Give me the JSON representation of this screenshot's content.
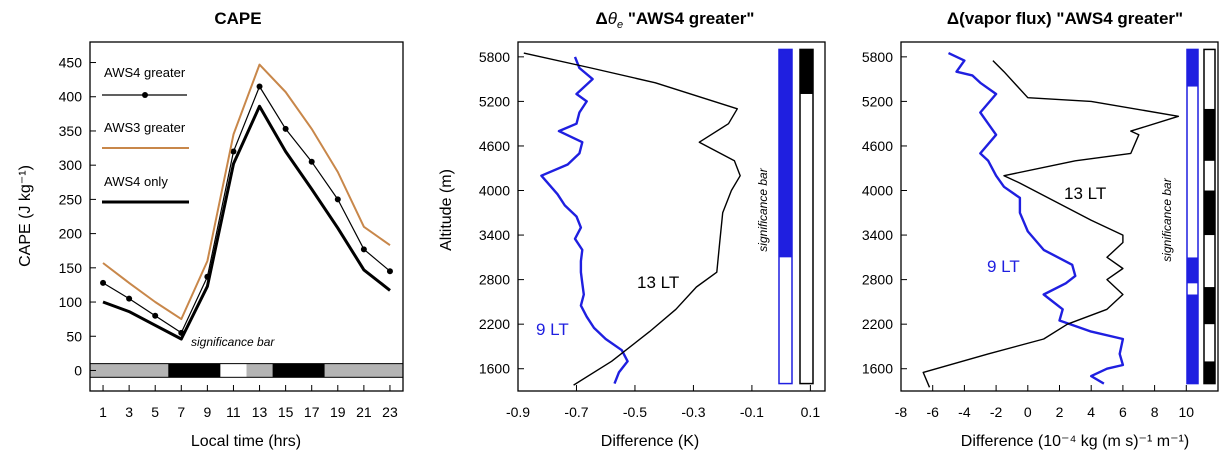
{
  "chart_data": [
    {
      "type": "line",
      "title": "CAPE",
      "xlabel": "Local time (hrs)",
      "ylabel": "CAPE (J kg⁻¹)",
      "xlim": [
        0,
        24
      ],
      "ylim": [
        -30,
        480
      ],
      "xticks": [
        "1",
        "3",
        "5",
        "7",
        "9",
        "11",
        "13",
        "15",
        "17",
        "19",
        "21",
        "23"
      ],
      "yticks": [
        "0",
        "50",
        "100",
        "150",
        "200",
        "250",
        "300",
        "350",
        "400",
        "450"
      ],
      "x": [
        1,
        3,
        5,
        7,
        9,
        11,
        13,
        15,
        17,
        19,
        21,
        23
      ],
      "series": [
        {
          "name": "AWS4 greater",
          "color": "#000000",
          "width": 1.2,
          "markers": true,
          "values": [
            128,
            105,
            80,
            55,
            137,
            320,
            415,
            353,
            305,
            250,
            177,
            145
          ]
        },
        {
          "name": "AWS3 greater",
          "color": "#c8874a",
          "width": 2,
          "markers": false,
          "values": [
            157,
            128,
            100,
            75,
            160,
            345,
            447,
            407,
            353,
            290,
            210,
            183
          ]
        },
        {
          "name": "AWS4 only",
          "color": "#000000",
          "width": 3,
          "markers": false,
          "values": [
            100,
            86,
            66,
            46,
            123,
            302,
            386,
            320,
            265,
            208,
            147,
            117
          ]
        }
      ],
      "legend_position": "top-left",
      "significance_label": "significance bar",
      "significance_bar": [
        {
          "from": 0,
          "to": 6,
          "state": "not-significant"
        },
        {
          "from": 6,
          "to": 10,
          "state": "significant"
        },
        {
          "from": 10,
          "to": 12,
          "state": "other"
        },
        {
          "from": 12,
          "to": 14,
          "state": "not-significant"
        },
        {
          "from": 14,
          "to": 18,
          "state": "significant"
        },
        {
          "from": 18,
          "to": 24,
          "state": "not-significant"
        }
      ]
    },
    {
      "type": "line",
      "title": "Δθe \"AWS4 greater\"",
      "title_parts": {
        "delta": "Δ",
        "symbol": "θ",
        "subscript": "e",
        "rest": " \"AWS4 greater\""
      },
      "xlabel": "Difference (K)",
      "ylabel": "Altitude (m)",
      "xlim": [
        -0.9,
        0.15
      ],
      "ylim": [
        1300,
        6000
      ],
      "xticks": [
        "-0.9",
        "-0.7",
        "-0.5",
        "-0.3",
        "-0.1",
        "0.1"
      ],
      "yticks": [
        "1600",
        "2200",
        "2800",
        "3400",
        "4000",
        "4600",
        "5200",
        "5800"
      ],
      "series": [
        {
          "name": "9 LT",
          "color": "#1f1fe0",
          "points": [
            [
              -0.57,
              1400
            ],
            [
              -0.555,
              1550
            ],
            [
              -0.525,
              1700
            ],
            [
              -0.545,
              1850
            ],
            [
              -0.6,
              2000
            ],
            [
              -0.64,
              2150
            ],
            [
              -0.665,
              2300
            ],
            [
              -0.685,
              2450
            ],
            [
              -0.675,
              2600
            ],
            [
              -0.68,
              2750
            ],
            [
              -0.685,
              2900
            ],
            [
              -0.685,
              3050
            ],
            [
              -0.68,
              3200
            ],
            [
              -0.705,
              3350
            ],
            [
              -0.685,
              3500
            ],
            [
              -0.7,
              3650
            ],
            [
              -0.74,
              3800
            ],
            [
              -0.765,
              3950
            ],
            [
              -0.82,
              4200
            ],
            [
              -0.73,
              4350
            ],
            [
              -0.69,
              4500
            ],
            [
              -0.68,
              4650
            ],
            [
              -0.76,
              4800
            ],
            [
              -0.7,
              4900
            ],
            [
              -0.69,
              5050
            ],
            [
              -0.665,
              5200
            ],
            [
              -0.7,
              5300
            ],
            [
              -0.645,
              5500
            ],
            [
              -0.69,
              5650
            ],
            [
              -0.705,
              5800
            ]
          ]
        },
        {
          "name": "13 LT",
          "color": "#000000",
          "points": [
            [
              -0.71,
              1380
            ],
            [
              -0.58,
              1700
            ],
            [
              -0.45,
              2100
            ],
            [
              -0.36,
              2400
            ],
            [
              -0.29,
              2700
            ],
            [
              -0.22,
              2900
            ],
            [
              -0.21,
              3300
            ],
            [
              -0.2,
              3700
            ],
            [
              -0.17,
              4000
            ],
            [
              -0.14,
              4200
            ],
            [
              -0.16,
              4400
            ],
            [
              -0.28,
              4650
            ],
            [
              -0.18,
              4900
            ],
            [
              -0.15,
              5100
            ],
            [
              -0.43,
              5450
            ],
            [
              -0.65,
              5650
            ],
            [
              -0.88,
              5850
            ]
          ]
        }
      ],
      "series_labels": [
        "9 LT",
        "13 LT"
      ],
      "significance_label": "significance bar",
      "significance_bars": [
        {
          "color": "#1f1fe0",
          "segments": [
            {
              "from": 1400,
              "to": 3100,
              "state": "not-significant"
            },
            {
              "from": 3100,
              "to": 5900,
              "state": "significant"
            }
          ]
        },
        {
          "color": "#000000",
          "segments": [
            {
              "from": 1400,
              "to": 5300,
              "state": "not-significant"
            },
            {
              "from": 5300,
              "to": 5900,
              "state": "significant"
            }
          ]
        }
      ]
    },
    {
      "type": "line",
      "title": "Δ(vapor flux) \"AWS4 greater\"",
      "xlabel": "Difference (10⁻⁴ kg (m s)⁻¹ m⁻¹)",
      "ylabel": "",
      "xlim": [
        -8,
        12
      ],
      "ylim": [
        1300,
        6000
      ],
      "xticks": [
        "-8",
        "-6",
        "-4",
        "-2",
        "0",
        "2",
        "4",
        "6",
        "8",
        "10"
      ],
      "yticks": [
        "1600",
        "2200",
        "2800",
        "3400",
        "4000",
        "4600",
        "5200",
        "5800"
      ],
      "series": [
        {
          "name": "9 LT",
          "color": "#1f1fe0",
          "points": [
            [
              4.8,
              1400
            ],
            [
              4.0,
              1500
            ],
            [
              5.0,
              1600
            ],
            [
              6.0,
              1650
            ],
            [
              5.8,
              1800
            ],
            [
              6.0,
              2000
            ],
            [
              4.0,
              2100
            ],
            [
              2.0,
              2250
            ],
            [
              2.2,
              2400
            ],
            [
              1.0,
              2600
            ],
            [
              2.4,
              2750
            ],
            [
              3.0,
              2850
            ],
            [
              2.8,
              3000
            ],
            [
              1.0,
              3200
            ],
            [
              0.0,
              3450
            ],
            [
              -0.5,
              3700
            ],
            [
              -0.5,
              3900
            ],
            [
              -1.5,
              4050
            ],
            [
              -2.0,
              4200
            ],
            [
              -2.5,
              4400
            ],
            [
              -3.0,
              4500
            ],
            [
              -2.0,
              4750
            ],
            [
              -2.5,
              4900
            ],
            [
              -3.0,
              5050
            ],
            [
              -2.0,
              5300
            ],
            [
              -3.0,
              5450
            ],
            [
              -3.5,
              5550
            ],
            [
              -4.5,
              5600
            ],
            [
              -4.0,
              5750
            ],
            [
              -5.0,
              5850
            ]
          ]
        },
        {
          "name": "13 LT",
          "color": "#000000",
          "points": [
            [
              -6.2,
              1350
            ],
            [
              -6.6,
              1550
            ],
            [
              -2.5,
              1800
            ],
            [
              1.0,
              2000
            ],
            [
              2.5,
              2200
            ],
            [
              5.0,
              2400
            ],
            [
              6.0,
              2600
            ],
            [
              5.0,
              2800
            ],
            [
              6.0,
              2950
            ],
            [
              5.0,
              3100
            ],
            [
              6.0,
              3300
            ],
            [
              6.0,
              3400
            ],
            [
              4.0,
              3600
            ],
            [
              -0.5,
              4100
            ],
            [
              -1.5,
              4200
            ],
            [
              3.0,
              4400
            ],
            [
              6.5,
              4500
            ],
            [
              7.0,
              4750
            ],
            [
              6.5,
              4800
            ],
            [
              9.5,
              5000
            ],
            [
              4.0,
              5200
            ],
            [
              0.0,
              5250
            ],
            [
              -1.5,
              5600
            ],
            [
              -2.2,
              5750
            ]
          ]
        }
      ],
      "series_labels": [
        "9 LT",
        "13 LT"
      ],
      "significance_label": "significance bar",
      "significance_bars": [
        {
          "color": "#1f1fe0",
          "segments": [
            {
              "from": 1400,
              "to": 2600,
              "state": "significant"
            },
            {
              "from": 2600,
              "to": 2750,
              "state": "not-significant"
            },
            {
              "from": 2750,
              "to": 3100,
              "state": "significant"
            },
            {
              "from": 3100,
              "to": 5400,
              "state": "not-significant"
            },
            {
              "from": 5400,
              "to": 5900,
              "state": "significant"
            }
          ]
        },
        {
          "color": "#000000",
          "segments": [
            {
              "from": 1400,
              "to": 1700,
              "state": "significant"
            },
            {
              "from": 1700,
              "to": 2200,
              "state": "not-significant"
            },
            {
              "from": 2200,
              "to": 2700,
              "state": "significant"
            },
            {
              "from": 2700,
              "to": 3400,
              "state": "not-significant"
            },
            {
              "from": 3400,
              "to": 4000,
              "state": "significant"
            },
            {
              "from": 4000,
              "to": 4400,
              "state": "not-significant"
            },
            {
              "from": 4400,
              "to": 5100,
              "state": "significant"
            },
            {
              "from": 5100,
              "to": 5900,
              "state": "not-significant"
            }
          ]
        }
      ]
    }
  ]
}
